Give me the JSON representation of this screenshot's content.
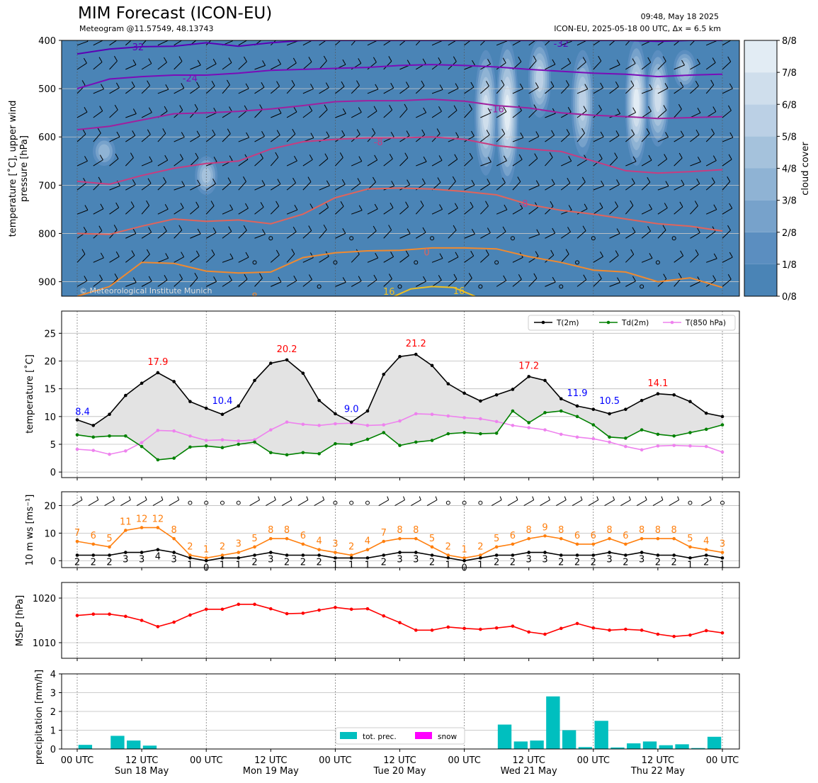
{
  "header": {
    "title": "MIM Forecast (ICON-EU)",
    "subtitle": "Meteogram @11.57549, 48.13743",
    "issue_time": "09:48, May 18 2025",
    "model_info": "ICON-EU, 2025-05-18 00 UTC, Δx = 6.5 km",
    "copyright": "© Meteorological Institute Munich"
  },
  "time_axis": {
    "ticks": [
      "00 UTC",
      "12 UTC",
      "00 UTC",
      "12 UTC",
      "00 UTC",
      "12 UTC",
      "00 UTC",
      "12 UTC",
      "00 UTC",
      "12 UTC",
      "00 UTC"
    ],
    "days": [
      "Sun 18 May",
      "Mon 19 May",
      "Tue 20 May",
      "Wed 21 May",
      "Thu 22 May"
    ]
  },
  "chart_data": [
    {
      "type": "heatmap",
      "name": "upper-air",
      "ylabel": "temperature [˚C], upper wind\npressure [hPa]",
      "ylim": [
        930,
        400
      ],
      "yticks": [
        400,
        500,
        600,
        700,
        800,
        900
      ],
      "colorbar_label": "cloud cover",
      "colorbar_ticks": [
        "0/8",
        "1/8",
        "2/8",
        "3/8",
        "4/8",
        "5/8",
        "6/8",
        "7/8",
        "8/8"
      ],
      "isotherm_labels": [
        "-32",
        "-32",
        "-24",
        "-16",
        "-8",
        "-8",
        "0",
        "8",
        "16",
        "16"
      ],
      "isotherms": [
        {
          "t": -32,
          "x": [
            0,
            6,
            12,
            18,
            24,
            30,
            36,
            42,
            48,
            54,
            60,
            66,
            72,
            78,
            84,
            90,
            96,
            102,
            108,
            114,
            120
          ],
          "p": [
            428,
            418,
            413,
            412,
            405,
            412,
            405,
            400,
            400,
            400,
            400,
            400,
            400,
            400,
            400,
            400,
            400,
            400,
            402,
            400,
            400
          ]
        },
        {
          "t": -24,
          "x": [
            0,
            6,
            12,
            18,
            24,
            30,
            36,
            42,
            48,
            54,
            60,
            66,
            72,
            78,
            84,
            90,
            96,
            102,
            108,
            114,
            120
          ],
          "p": [
            500,
            480,
            475,
            472,
            472,
            468,
            462,
            460,
            458,
            456,
            452,
            450,
            452,
            455,
            460,
            464,
            468,
            470,
            475,
            472,
            470
          ]
        },
        {
          "t": -16,
          "x": [
            0,
            6,
            12,
            18,
            24,
            30,
            36,
            42,
            48,
            54,
            60,
            66,
            72,
            78,
            84,
            90,
            96,
            102,
            108,
            114,
            120
          ],
          "p": [
            585,
            578,
            565,
            552,
            550,
            547,
            542,
            535,
            527,
            525,
            525,
            522,
            526,
            535,
            540,
            550,
            555,
            558,
            562,
            560,
            558
          ]
        },
        {
          "t": -8,
          "x": [
            0,
            6,
            12,
            18,
            24,
            30,
            36,
            42,
            48,
            54,
            60,
            66,
            72,
            78,
            84,
            90,
            96,
            102,
            108,
            114,
            120
          ],
          "p": [
            692,
            698,
            680,
            665,
            655,
            650,
            625,
            610,
            605,
            602,
            602,
            600,
            605,
            618,
            625,
            630,
            650,
            670,
            675,
            672,
            668
          ]
        },
        {
          "t": 0,
          "x": [
            0,
            6,
            12,
            18,
            24,
            30,
            36,
            42,
            48,
            54,
            60,
            66,
            72,
            78,
            84,
            90,
            96,
            102,
            108,
            114,
            120
          ],
          "p": [
            800,
            802,
            785,
            770,
            775,
            772,
            780,
            760,
            726,
            708,
            706,
            708,
            713,
            720,
            740,
            752,
            760,
            770,
            780,
            785,
            795
          ]
        },
        {
          "t": 8,
          "x": [
            0,
            6,
            12,
            18,
            24,
            30,
            36,
            42,
            48,
            54,
            60,
            66,
            72,
            78,
            84,
            90,
            96,
            102,
            108,
            114,
            120
          ],
          "p": [
            930,
            910,
            860,
            862,
            878,
            882,
            880,
            850,
            840,
            836,
            835,
            830,
            830,
            832,
            848,
            860,
            876,
            880,
            900,
            892,
            912
          ]
        },
        {
          "t": 16,
          "x": [
            58,
            62,
            66,
            70,
            74
          ],
          "p": [
            935,
            915,
            910,
            912,
            930
          ]
        }
      ],
      "cloud_cover_columns": [
        {
          "x": 5,
          "p": [
            600,
            660
          ],
          "cover": 3
        },
        {
          "x": 24,
          "p": [
            640,
            720
          ],
          "cover": 4
        },
        {
          "x": 76,
          "p": [
            420,
            680
          ],
          "cover": 6
        },
        {
          "x": 80,
          "p": [
            400,
            700
          ],
          "cover": 7
        },
        {
          "x": 86,
          "p": [
            400,
            560
          ],
          "cover": 5
        },
        {
          "x": 94,
          "p": [
            420,
            640
          ],
          "cover": 5
        },
        {
          "x": 104,
          "p": [
            400,
            660
          ],
          "cover": 7
        },
        {
          "x": 108,
          "p": [
            420,
            620
          ],
          "cover": 6
        },
        {
          "x": 113,
          "p": [
            420,
            500
          ],
          "cover": 4
        }
      ]
    },
    {
      "type": "line",
      "name": "temperature",
      "ylabel": "temperature [˚C]",
      "ylim": [
        -1,
        29
      ],
      "yticks": [
        0,
        5,
        10,
        15,
        20,
        25
      ],
      "x_hours": [
        0,
        3,
        6,
        9,
        12,
        15,
        18,
        21,
        24,
        27,
        30,
        33,
        36,
        39,
        42,
        45,
        48,
        51,
        54,
        57,
        60,
        63,
        66,
        69,
        72,
        75,
        78,
        81,
        84,
        87,
        90,
        93,
        96,
        99,
        102,
        105,
        108,
        111,
        114,
        117,
        120
      ],
      "series": [
        {
          "name": "T(2m)",
          "color": "#000000",
          "values": [
            9.4,
            8.4,
            10.4,
            13.8,
            16.0,
            17.9,
            16.3,
            12.7,
            11.5,
            10.4,
            11.9,
            16.5,
            19.6,
            20.2,
            17.8,
            12.9,
            10.5,
            9.0,
            11.0,
            17.6,
            20.8,
            21.2,
            19.2,
            15.9,
            14.2,
            12.8,
            13.9,
            14.9,
            17.2,
            16.5,
            13.2,
            11.9,
            11.3,
            10.5,
            11.3,
            12.9,
            14.1,
            13.9,
            12.7,
            10.6,
            10.0
          ]
        },
        {
          "name": "Td(2m)",
          "color": "#008000",
          "values": [
            6.7,
            6.3,
            6.5,
            6.5,
            4.6,
            2.2,
            2.5,
            4.5,
            4.7,
            4.4,
            5.0,
            5.4,
            3.5,
            3.1,
            3.5,
            3.3,
            5.1,
            5.0,
            5.9,
            7.1,
            4.8,
            5.4,
            5.7,
            6.9,
            7.1,
            6.9,
            7.0,
            11.0,
            8.9,
            10.7,
            11.0,
            10.0,
            8.5,
            6.3,
            6.1,
            7.6,
            6.8,
            6.5,
            7.1,
            7.7,
            8.5
          ]
        },
        {
          "name": "T(850 hPa)",
          "color": "#ee82ee",
          "values": [
            4.1,
            3.9,
            3.2,
            3.8,
            5.3,
            7.5,
            7.4,
            6.5,
            5.7,
            5.8,
            5.6,
            5.8,
            7.6,
            9.0,
            8.6,
            8.4,
            8.7,
            8.8,
            8.4,
            8.5,
            9.2,
            10.5,
            10.4,
            10.1,
            9.8,
            9.6,
            9.1,
            8.4,
            8.0,
            7.6,
            6.8,
            6.3,
            6.0,
            5.4,
            4.6,
            4.0,
            4.7,
            4.8,
            4.7,
            4.6,
            3.6
          ]
        }
      ],
      "annotations": [
        {
          "text": "8.4",
          "x": 1,
          "y": 10.3,
          "color": "#0000ff"
        },
        {
          "text": "17.9",
          "x": 15,
          "y": 19.3,
          "color": "#ff0000"
        },
        {
          "text": "10.4",
          "x": 27,
          "y": 12.3,
          "color": "#0000ff"
        },
        {
          "text": "20.2",
          "x": 39,
          "y": 21.6,
          "color": "#ff0000"
        },
        {
          "text": "9.0",
          "x": 51,
          "y": 10.8,
          "color": "#0000ff"
        },
        {
          "text": "21.2",
          "x": 63,
          "y": 22.6,
          "color": "#ff0000"
        },
        {
          "text": "17.2",
          "x": 84,
          "y": 18.6,
          "color": "#ff0000"
        },
        {
          "text": "11.9",
          "x": 93,
          "y": 13.7,
          "color": "#0000ff"
        },
        {
          "text": "10.5",
          "x": 99,
          "y": 12.3,
          "color": "#0000ff"
        },
        {
          "text": "14.1",
          "x": 108,
          "y": 15.5,
          "color": "#ff0000"
        }
      ],
      "legend": "top-right"
    },
    {
      "type": "line",
      "name": "wind",
      "ylabel": "10 m ws [ms⁻¹]",
      "ylim": [
        -2.5,
        25
      ],
      "yticks": [
        0,
        10,
        20
      ],
      "x_hours": [
        0,
        3,
        6,
        9,
        12,
        15,
        18,
        21,
        24,
        27,
        30,
        33,
        36,
        39,
        42,
        45,
        48,
        51,
        54,
        57,
        60,
        63,
        66,
        69,
        72,
        75,
        78,
        81,
        84,
        87,
        90,
        93,
        96,
        99,
        102,
        105,
        108,
        111,
        114,
        117,
        120
      ],
      "series": [
        {
          "name": "gust",
          "color": "#ff7f0e",
          "values": [
            7,
            6,
            5,
            11,
            12,
            12,
            8,
            2,
            1,
            2,
            3,
            5,
            8,
            8,
            6,
            4,
            3,
            2,
            4,
            7,
            8,
            8,
            5,
            2,
            1,
            2,
            5,
            6,
            8,
            9,
            8,
            6,
            6,
            8,
            6,
            8,
            8,
            8,
            5,
            4,
            3
          ]
        },
        {
          "name": "mean",
          "color": "#000000",
          "values": [
            2,
            2,
            2,
            3,
            3,
            4,
            3,
            1,
            0,
            1,
            1,
            2,
            3,
            2,
            2,
            2,
            1,
            1,
            1,
            2,
            3,
            3,
            2,
            1,
            0,
            1,
            2,
            2,
            3,
            3,
            2,
            2,
            2,
            3,
            2,
            3,
            2,
            2,
            1,
            2,
            1
          ]
        }
      ]
    },
    {
      "type": "line",
      "name": "mslp",
      "ylabel": "MSLP [hPa]",
      "ylim": [
        1006.5,
        1023.5
      ],
      "yticks": [
        1010,
        1020
      ],
      "x_hours": [
        0,
        3,
        6,
        9,
        12,
        15,
        18,
        21,
        24,
        27,
        30,
        33,
        36,
        39,
        42,
        45,
        48,
        51,
        54,
        57,
        60,
        63,
        66,
        69,
        72,
        75,
        78,
        81,
        84,
        87,
        90,
        93,
        96,
        99,
        102,
        105,
        108,
        111,
        114,
        117,
        120
      ],
      "series": [
        {
          "name": "MSLP",
          "color": "#ff0000",
          "values": [
            1016.1,
            1016.4,
            1016.4,
            1015.9,
            1015.0,
            1013.6,
            1014.6,
            1016.2,
            1017.5,
            1017.5,
            1018.6,
            1018.6,
            1017.6,
            1016.5,
            1016.6,
            1017.3,
            1017.9,
            1017.5,
            1017.6,
            1016.0,
            1014.5,
            1012.8,
            1012.8,
            1013.5,
            1013.2,
            1013.0,
            1013.3,
            1013.7,
            1012.4,
            1011.9,
            1013.2,
            1014.3,
            1013.3,
            1012.8,
            1013.0,
            1012.8,
            1011.9,
            1011.4,
            1011.7,
            1012.7,
            1012.2
          ]
        }
      ]
    },
    {
      "type": "bar",
      "name": "precipitation",
      "ylabel": "precipitation [mm/h]",
      "ylim": [
        0,
        4
      ],
      "yticks": [
        0,
        1,
        2,
        3,
        4
      ],
      "x_hours": [
        3,
        6,
        9,
        12,
        15,
        78,
        81,
        84,
        87,
        90,
        93,
        96,
        99,
        102,
        105,
        108,
        111,
        114,
        117,
        120
      ],
      "series": [
        {
          "name": "tot. prec.",
          "color": "#00bfbf",
          "values": [
            0.22,
            0.02,
            0.7,
            0.45,
            0.18,
            0.02,
            1.3,
            0.4,
            0.45,
            2.8,
            1.0,
            0.1,
            1.5,
            0.08,
            0.3,
            0.4,
            0.2,
            0.25,
            0.05,
            0.65
          ]
        },
        {
          "name": "snow",
          "color": "#ff00ff",
          "values": [
            0,
            0,
            0,
            0,
            0,
            0,
            0,
            0,
            0,
            0,
            0,
            0,
            0,
            0,
            0,
            0,
            0,
            0,
            0,
            0
          ]
        }
      ],
      "legend": "bottom-center"
    }
  ]
}
